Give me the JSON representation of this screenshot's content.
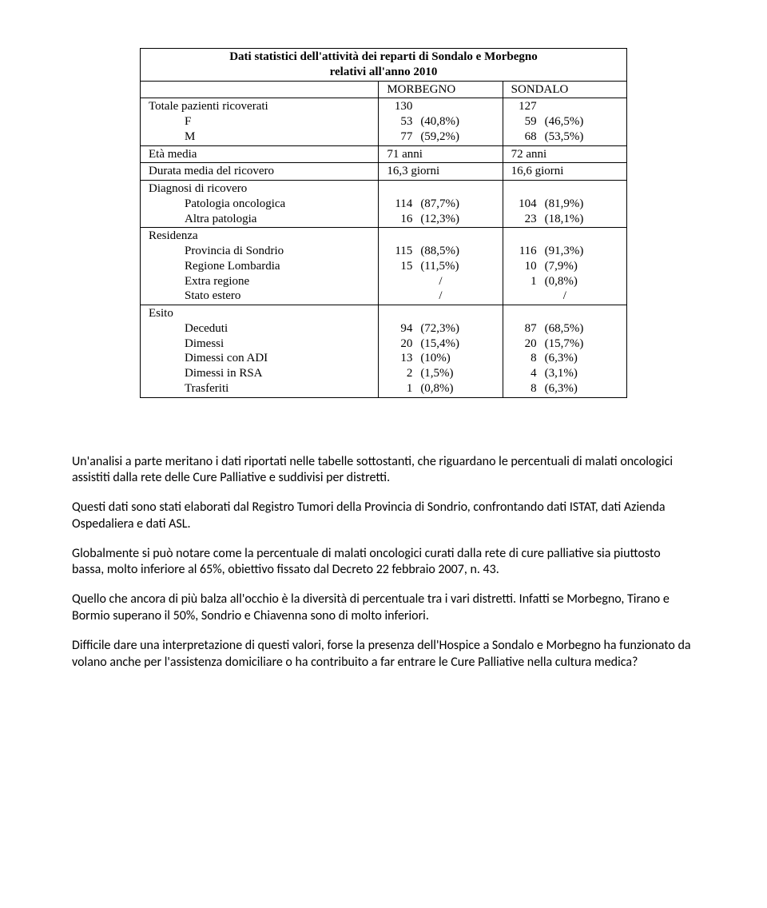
{
  "table": {
    "title_line1": "Dati statistici dell'attività dei reparti di Sondalo e Morbegno",
    "title_line2": "relativi all'anno 2010",
    "col1": "MORBEGNO",
    "col2": "SONDALO",
    "rows": {
      "totale_label": "Totale pazienti ricoverati",
      "totale_m": "130",
      "totale_s": "127",
      "f_label": "F",
      "f_m_n": "53",
      "f_m_p": "(40,8%)",
      "f_s_n": "59",
      "f_s_p": "(46,5%)",
      "m_label": "M",
      "m_m_n": "77",
      "m_m_p": "(59,2%)",
      "m_s_n": "68",
      "m_s_p": "(53,5%)",
      "eta_label": "Età media",
      "eta_m": "71 anni",
      "eta_s": "72 anni",
      "durata_label": "Durata media del ricovero",
      "durata_m": "16,3 giorni",
      "durata_s": "16,6 giorni",
      "diagnosi_label": "Diagnosi di ricovero",
      "pat_onc_label": "Patologia oncologica",
      "pat_onc_m_n": "114",
      "pat_onc_m_p": "(87,7%)",
      "pat_onc_s_n": "104",
      "pat_onc_s_p": "(81,9%)",
      "altra_pat_label": "Altra patologia",
      "altra_pat_m_n": "16",
      "altra_pat_m_p": "(12,3%)",
      "altra_pat_s_n": "23",
      "altra_pat_s_p": "(18,1%)",
      "residenza_label": "Residenza",
      "prov_label": "Provincia di Sondrio",
      "prov_m_n": "115",
      "prov_m_p": "(88,5%)",
      "prov_s_n": "116",
      "prov_s_p": "(91,3%)",
      "reglom_label": "Regione Lombardia",
      "reglom_m_n": "15",
      "reglom_m_p": "(11,5%)",
      "reglom_s_n": "10",
      "reglom_s_p": "(7,9%)",
      "extra_label": "Extra regione",
      "extra_m": "/",
      "extra_s_n": "1",
      "extra_s_p": "(0,8%)",
      "estero_label": "Stato estero",
      "estero_m": "/",
      "estero_s": "/",
      "esito_label": "Esito",
      "dec_label": "Deceduti",
      "dec_m_n": "94",
      "dec_m_p": "(72,3%)",
      "dec_s_n": "87",
      "dec_s_p": "(68,5%)",
      "dim_label": "Dimessi",
      "dim_m_n": "20",
      "dim_m_p": "(15,4%)",
      "dim_s_n": "20",
      "dim_s_p": "(15,7%)",
      "dimadi_label": "Dimessi con ADI",
      "dimadi_m_n": "13",
      "dimadi_m_p": "(10%)",
      "dimadi_s_n": "8",
      "dimadi_s_p": "(6,3%)",
      "dimrsa_label": "Dimessi in RSA",
      "dimrsa_m_n": "2",
      "dimrsa_m_p": "(1,5%)",
      "dimrsa_s_n": "4",
      "dimrsa_s_p": "(3,1%)",
      "trasf_label": "Trasferiti",
      "trasf_m_n": "1",
      "trasf_m_p": "(0,8%)",
      "trasf_s_n": "8",
      "trasf_s_p": "(6,3%)"
    }
  },
  "paragraphs": {
    "p1": "Un'analisi a parte meritano i dati riportati nelle tabelle sottostanti, che riguardano le percentuali di malati oncologici assistiti dalla rete delle Cure Palliative e suddivisi per distretti.",
    "p2": "Questi dati sono stati elaborati dal Registro Tumori della Provincia di Sondrio, confrontando dati ISTAT, dati Azienda Ospedaliera e dati ASL.",
    "p3": "Globalmente si può notare come la percentuale di malati oncologici curati dalla rete di cure palliative sia piuttosto bassa, molto inferiore al 65%, obiettivo fissato dal Decreto 22 febbraio 2007, n. 43.",
    "p4": "Quello che ancora di più balza all'occhio è la diversità di percentuale tra i vari distretti. Infatti se Morbegno, Tirano e Bormio superano il 50%, Sondrio e Chiavenna sono di molto inferiori.",
    "p5": "Difficile dare una interpretazione di questi valori, forse la presenza dell'Hospice  a Sondalo e Morbegno ha funzionato da volano anche per l'assistenza domiciliare o ha contribuito a far entrare le Cure Palliative nella cultura medica?"
  }
}
